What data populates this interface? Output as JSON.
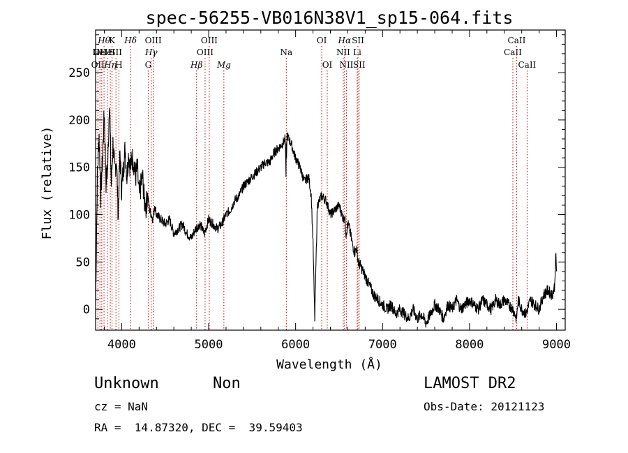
{
  "chart_data": {
    "type": "line",
    "title": "spec-56255-VB016N38V1_sp15-064.fits",
    "xlabel": "Wavelength (Å)",
    "ylabel": "Flux (relative)",
    "xlim": [
      3700,
      9100
    ],
    "ylim": [
      -22,
      295
    ],
    "xticks": [
      4000,
      5000,
      6000,
      7000,
      8000,
      9000
    ],
    "yticks": [
      0,
      50,
      100,
      150,
      200,
      250
    ],
    "grid": false,
    "legend": "none",
    "line_color": "#000000",
    "marker_color": "#cc0000",
    "series": [
      {
        "x": [
          3700,
          3720,
          3740,
          3760,
          3780,
          3800,
          3820,
          3840,
          3860,
          3880,
          3900,
          3920,
          3940,
          3960,
          3980,
          4000,
          4020,
          4040,
          4060,
          4080,
          4100,
          4120,
          4140,
          4160,
          4180,
          4200,
          4220,
          4240,
          4260,
          4280,
          4300,
          4320,
          4340,
          4360,
          4380,
          4400,
          4450,
          4500,
          4550,
          4600,
          4650,
          4700,
          4750,
          4800,
          4850,
          4900,
          4950,
          5000,
          5050,
          5100,
          5150,
          5200,
          5250,
          5300,
          5350,
          5400,
          5450,
          5500,
          5550,
          5600,
          5650,
          5700,
          5750,
          5800,
          5850,
          5880,
          5890,
          5893,
          5896,
          5900,
          5920,
          5950,
          5980,
          6000,
          6050,
          6100,
          6150,
          6180,
          6190,
          6200,
          6210,
          6220,
          6250,
          6300,
          6350,
          6400,
          6450,
          6500,
          6550,
          6563,
          6580,
          6600,
          6620,
          6650,
          6680,
          6700,
          6720,
          6750,
          6800,
          6850,
          6900,
          6950,
          7000,
          7050,
          7100,
          7150,
          7200,
          7250,
          7300,
          7350,
          7400,
          7450,
          7500,
          7550,
          7600,
          7650,
          7700,
          7750,
          7800,
          7850,
          7900,
          7950,
          8000,
          8050,
          8100,
          8150,
          8200,
          8250,
          8300,
          8350,
          8400,
          8450,
          8500,
          8520,
          8540,
          8560,
          8600,
          8650,
          8700,
          8750,
          8800,
          8850,
          8900,
          8950,
          8980,
          8990,
          9000
        ],
        "y": [
          5,
          140,
          185,
          120,
          160,
          210,
          135,
          150,
          225,
          130,
          175,
          145,
          160,
          100,
          165,
          125,
          150,
          170,
          140,
          165,
          150,
          160,
          155,
          140,
          150,
          120,
          130,
          140,
          115,
          110,
          120,
          105,
          100,
          95,
          110,
          100,
          95,
          90,
          95,
          80,
          85,
          90,
          80,
          75,
          85,
          90,
          80,
          95,
          90,
          85,
          90,
          100,
          105,
          115,
          120,
          130,
          135,
          140,
          145,
          150,
          155,
          155,
          165,
          170,
          175,
          180,
          140,
          175,
          160,
          185,
          180,
          175,
          165,
          160,
          150,
          135,
          140,
          120,
          95,
          70,
          30,
          -10,
          110,
          120,
          115,
          100,
          105,
          110,
          95,
          100,
          80,
          90,
          85,
          70,
          60,
          65,
          50,
          45,
          35,
          25,
          15,
          10,
          5,
          0,
          5,
          -5,
          0,
          -5,
          -10,
          0,
          -10,
          -5,
          -15,
          -5,
          5,
          0,
          -10,
          5,
          0,
          10,
          0,
          5,
          10,
          5,
          0,
          10,
          5,
          0,
          10,
          5,
          10,
          5,
          0,
          -5,
          -10,
          10,
          0,
          -5,
          10,
          5,
          0,
          15,
          20,
          15,
          25,
          60,
          40
        ]
      }
    ],
    "line_markers": [
      {
        "x": 3726,
        "row": 2,
        "label": "OII",
        "math": false
      },
      {
        "x": 3750,
        "row": 1,
        "label": "OII",
        "math": false
      },
      {
        "x": 3771,
        "row": 1,
        "label": "HeII",
        "math": false
      },
      {
        "x": 3797,
        "row": 0,
        "label": "Hθ",
        "math": true
      },
      {
        "x": 3835,
        "row": 1,
        "label": "HeI",
        "math": false
      },
      {
        "x": 3869,
        "row": 2,
        "label": "Hη",
        "math": true
      },
      {
        "x": 3889,
        "row": 0,
        "label": "K",
        "math": false
      },
      {
        "x": 3934,
        "row": 1,
        "label": "SII",
        "math": false
      },
      {
        "x": 3968,
        "row": 2,
        "label": "H",
        "math": false
      },
      {
        "x": 4102,
        "row": 0,
        "label": "Hδ",
        "math": true
      },
      {
        "x": 4305,
        "row": 2,
        "label": "G",
        "math": false
      },
      {
        "x": 4340,
        "row": 1,
        "label": "Hγ",
        "math": true
      },
      {
        "x": 4363,
        "row": 0,
        "label": "OIII",
        "math": false
      },
      {
        "x": 4861,
        "row": 2,
        "label": "Hβ",
        "math": true
      },
      {
        "x": 4959,
        "row": 1,
        "label": "OIII",
        "math": false
      },
      {
        "x": 5007,
        "row": 0,
        "label": "OIII",
        "math": false
      },
      {
        "x": 5175,
        "row": 2,
        "label": "Mg",
        "math": true
      },
      {
        "x": 5893,
        "row": 1,
        "label": "Na",
        "math": false
      },
      {
        "x": 6300,
        "row": 0,
        "label": "OI",
        "math": false
      },
      {
        "x": 6364,
        "row": 2,
        "label": "OI",
        "math": false
      },
      {
        "x": 6548,
        "row": 1,
        "label": "NII",
        "math": false
      },
      {
        "x": 6563,
        "row": 0,
        "label": "Hα",
        "math": true
      },
      {
        "x": 6584,
        "row": 2,
        "label": "NII",
        "math": false
      },
      {
        "x": 6708,
        "row": 1,
        "label": "Li",
        "math": false
      },
      {
        "x": 6717,
        "row": 0,
        "label": "SII",
        "math": false
      },
      {
        "x": 6731,
        "row": 2,
        "label": "SII",
        "math": false
      },
      {
        "x": 8498,
        "row": 1,
        "label": "CaII",
        "math": false
      },
      {
        "x": 8542,
        "row": 0,
        "label": "CaII",
        "math": false
      },
      {
        "x": 8662,
        "row": 2,
        "label": "CaII",
        "math": false
      }
    ]
  },
  "footer": {
    "object_class": "Unknown",
    "object_subclass": "Non",
    "survey": "LAMOST DR2",
    "redshift": "cz = NaN",
    "obs_date": "Obs-Date: 20121123",
    "coords": "RA =  14.87320, DEC =  39.59403"
  }
}
